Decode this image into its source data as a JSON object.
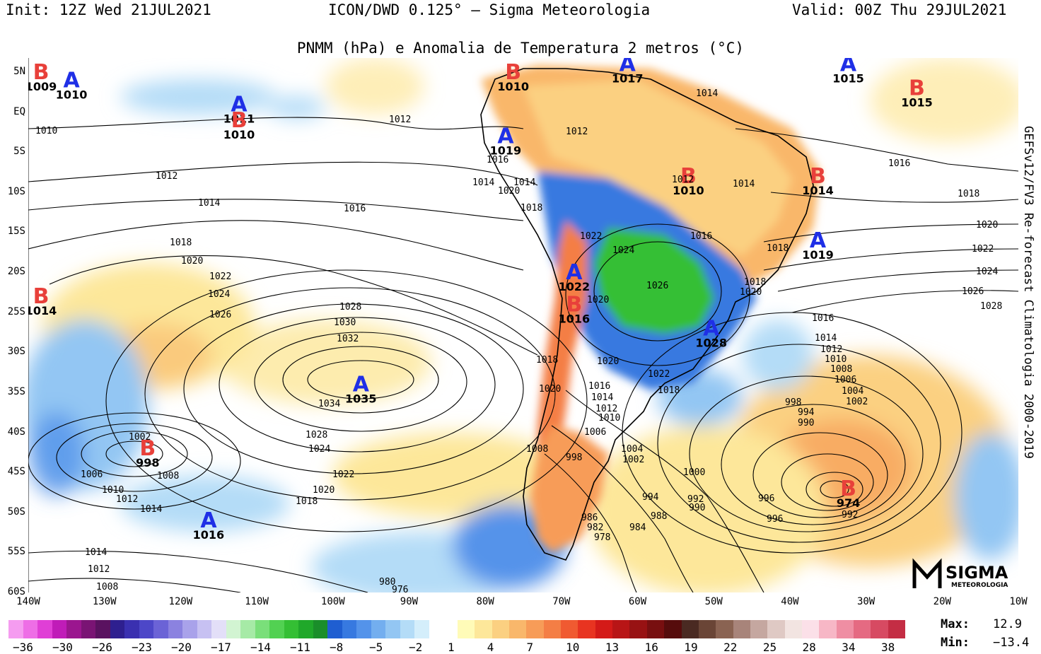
{
  "header": {
    "init": "Init: 12Z Wed 21JUL2021",
    "model": "ICON/DWD 0.125° — Sigma Meteorologia",
    "valid": "Valid: 00Z Thu 29JUL2021",
    "subtitle": "PNMM (hPa) e Anomalia de Temperatura 2 metros (°C)"
  },
  "side_text": "GEFSv12/FV3 Re-forecast Climatologia 2000-2019",
  "lat_labels": [
    "5N",
    "EQ",
    "5S",
    "10S",
    "15S",
    "20S",
    "25S",
    "30S",
    "35S",
    "40S",
    "45S",
    "50S",
    "55S",
    "60S"
  ],
  "lon_labels": [
    "140W",
    "130W",
    "120W",
    "110W",
    "100W",
    "90W",
    "80W",
    "70W",
    "60W",
    "50W",
    "40W",
    "30W",
    "20W",
    "10W"
  ],
  "pressure_centers": [
    {
      "type": "B",
      "value": "1009",
      "lon": -140,
      "lat": 5
    },
    {
      "type": "A",
      "value": "1010",
      "lon": -136,
      "lat": 4
    },
    {
      "type": "A",
      "value": "1011",
      "lon": -114,
      "lat": 1
    },
    {
      "type": "B",
      "value": "1010",
      "lon": -114,
      "lat": -1
    },
    {
      "type": "B",
      "value": "1010",
      "lon": -78,
      "lat": 5
    },
    {
      "type": "A",
      "value": "1017",
      "lon": -63,
      "lat": 6
    },
    {
      "type": "A",
      "value": "1015",
      "lon": -34,
      "lat": 6
    },
    {
      "type": "B",
      "value": "1015",
      "lon": -25,
      "lat": 3
    },
    {
      "type": "A",
      "value": "1019",
      "lon": -79,
      "lat": -3
    },
    {
      "type": "B",
      "value": "1010",
      "lon": -55,
      "lat": -8
    },
    {
      "type": "B",
      "value": "1014",
      "lon": -38,
      "lat": -8
    },
    {
      "type": "A",
      "value": "1019",
      "lon": -38,
      "lat": -16
    },
    {
      "type": "A",
      "value": "1022",
      "lon": -70,
      "lat": -20
    },
    {
      "type": "B",
      "value": "1016",
      "lon": -70,
      "lat": -24
    },
    {
      "type": "A",
      "value": "1028",
      "lon": -52,
      "lat": -27
    },
    {
      "type": "B",
      "value": "1014",
      "lon": -140,
      "lat": -23
    },
    {
      "type": "A",
      "value": "1035",
      "lon": -98,
      "lat": -34
    },
    {
      "type": "B",
      "value": "998",
      "lon": -126,
      "lat": -42
    },
    {
      "type": "A",
      "value": "1016",
      "lon": -118,
      "lat": -51
    },
    {
      "type": "B",
      "value": "974",
      "lon": -34,
      "lat": -47
    }
  ],
  "isobar_labels": [
    "1010",
    "1012",
    "1014",
    "1016",
    "1018",
    "1020",
    "1022",
    "1024",
    "1026",
    "1028",
    "1030",
    "1032",
    "1034",
    "1008",
    "1006",
    "1004",
    "1002",
    "1000",
    "998",
    "996",
    "994",
    "992",
    "990",
    "988",
    "986",
    "984",
    "982",
    "980",
    "978",
    "976"
  ],
  "colorbar": {
    "ticks": [
      "−36",
      "−30",
      "−26",
      "−23",
      "−20",
      "−17",
      "−14",
      "−11",
      "−8",
      "−5",
      "−2",
      "1",
      "4",
      "7",
      "10",
      "13",
      "16",
      "19",
      "22",
      "25",
      "28",
      "34",
      "38"
    ],
    "cold_colors": [
      "#f59cf0",
      "#ee6ee6",
      "#e03fd6",
      "#c01cb8",
      "#9b168f",
      "#7a1474",
      "#5a1260",
      "#2e1f8f",
      "#3a30b0",
      "#4d47c8",
      "#6b63d6",
      "#8b82e0",
      "#a9a2ea",
      "#c7c1f2",
      "#e3dff8",
      "#d2f4d2",
      "#a6eaa6",
      "#7adf7a",
      "#52d152",
      "#34bf34",
      "#20a82a",
      "#1a8e2a",
      "#1f5ed1",
      "#3779e0",
      "#5493ea",
      "#73aeef",
      "#93c6f3",
      "#b4dcf7",
      "#d4eefb"
    ],
    "warm_colors": [
      "#fffbb8",
      "#fde79a",
      "#fbd081",
      "#f9b76b",
      "#f79c58",
      "#f47e45",
      "#f05a31",
      "#e83421",
      "#d41a18",
      "#b81516",
      "#981213",
      "#780f10",
      "#560c0c",
      "#4a2a22",
      "#6a4536",
      "#8a6352",
      "#a8847a",
      "#c5a7a0",
      "#dfc9c4",
      "#f2e4e1",
      "#fbe0e8",
      "#f7b7c6",
      "#ef8ea3",
      "#e56a82",
      "#d74a62",
      "#c42d44"
    ],
    "max_label": "Max:",
    "max_value": "12.9",
    "min_label": "Min:",
    "min_value": "−13.4"
  },
  "logo": {
    "name": "SIGMA",
    "tagline": "METEOROLOGIA"
  }
}
